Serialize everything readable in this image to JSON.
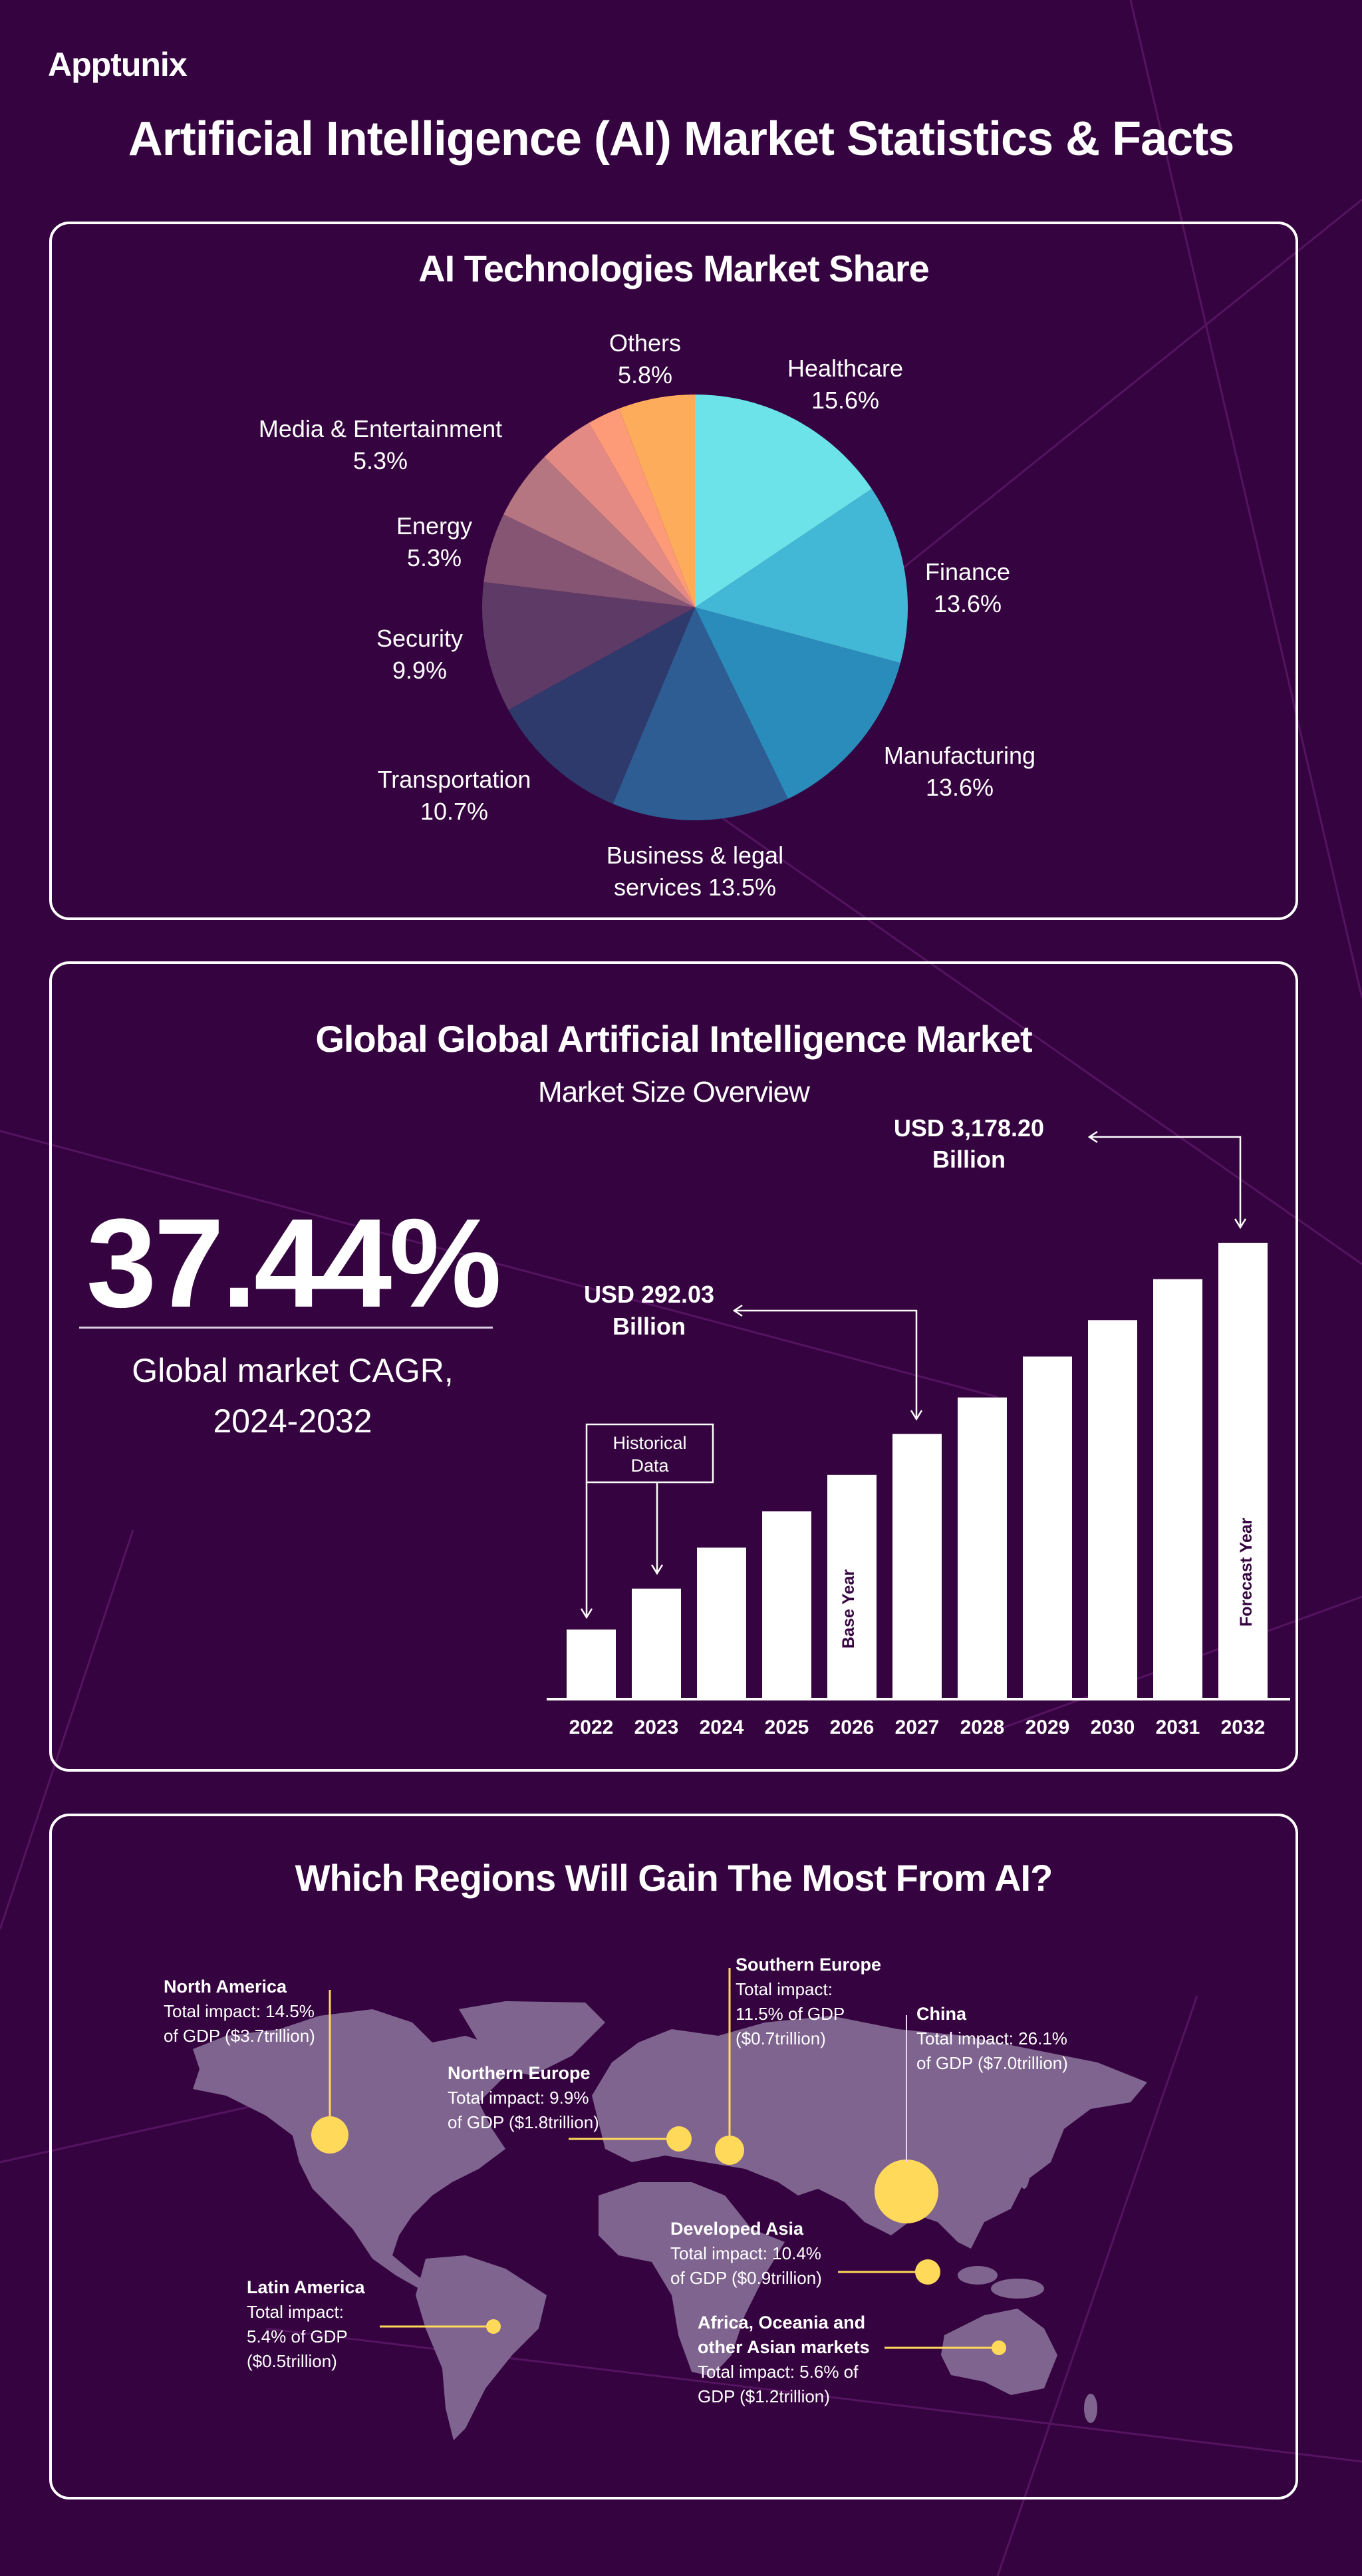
{
  "brand": {
    "logo": "Apptunix"
  },
  "title": "Artificial Intelligence (AI) Market Statistics & Facts",
  "colors": {
    "background": "#35033f",
    "panel_border": "#ffffff",
    "marker": "#ffd95a",
    "map_land": "#7f6490"
  },
  "chart_data": [
    {
      "type": "pie",
      "title": "AI Technologies Market Share",
      "slices": [
        {
          "name": "Healthcare",
          "label": "15.6%",
          "value": 15.6,
          "color": "#6be3e8"
        },
        {
          "name": "Finance",
          "label": "13.6%",
          "value": 13.6,
          "color": "#43b8d6"
        },
        {
          "name": "Manufacturing",
          "label": "13.6%",
          "value": 13.6,
          "color": "#2a8cbb"
        },
        {
          "name": "Business & legal",
          "name2": "services 13.5%",
          "label": "13.5%",
          "value": 13.5,
          "color": "#2e5d94"
        },
        {
          "name": "Transportation",
          "label": "10.7%",
          "value": 10.7,
          "color": "#2f3a6c"
        },
        {
          "name": "Security",
          "label": "9.9%",
          "value": 9.9,
          "color": "#5e3a67"
        },
        {
          "name": "Energy",
          "label": "5.3%",
          "value": 5.3,
          "color": "#865573"
        },
        {
          "name": "Media & Entertainment",
          "label": "5.3%",
          "value": 5.3,
          "color": "#b57581"
        },
        {
          "name": "",
          "label": "",
          "value": 4.2,
          "color": "#e38a84"
        },
        {
          "name": "",
          "label": "",
          "value": 2.5,
          "color": "#fd9a78"
        },
        {
          "name": "Others",
          "label": "5.8%",
          "value": 5.8,
          "color": "#fdac5c"
        }
      ]
    },
    {
      "type": "bar",
      "title": "Global Global Artificial Intelligence Market",
      "subtitle": "Market Size Overview",
      "categories": [
        "2022",
        "2023",
        "2024",
        "2025",
        "2026",
        "2027",
        "2028",
        "2029",
        "2030",
        "2031",
        "2032"
      ],
      "values_relative_percent": [
        15,
        24,
        33,
        41,
        49,
        58,
        66,
        75,
        83,
        92,
        100
      ],
      "bar_color": "#ffffff",
      "annotations": {
        "forecast_value": "USD 3,178.20",
        "forecast_unit": "Billion",
        "base_value": "USD 292.03",
        "base_unit": "Billion",
        "historical": "Historical",
        "historical2": "Data",
        "base_year": "Base Year",
        "forecast_year": "Forecast Year"
      }
    }
  ],
  "cagr": {
    "value": "37.44%",
    "label1": "Global market CAGR,",
    "label2": "2024-2032"
  },
  "regions": {
    "title": "Which Regions Will Gain The Most From AI?",
    "items": [
      {
        "name": "North America",
        "lines": [
          "Total impact: 14.5%",
          "of GDP ($3.7trillion)"
        ],
        "impact_pct": 14.5
      },
      {
        "name": "Northern Europe",
        "lines": [
          "Total impact: 9.9%",
          "of GDP ($1.8trillion)"
        ],
        "impact_pct": 9.9
      },
      {
        "name": "Southern Europe",
        "lines": [
          "Total impact:",
          "11.5% of GDP",
          "($0.7trillion)"
        ],
        "impact_pct": 11.5
      },
      {
        "name": "China",
        "lines": [
          "Total impact: 26.1%",
          "of GDP ($7.0trillion)"
        ],
        "impact_pct": 26.1
      },
      {
        "name": "Developed Asia",
        "lines": [
          "Total impact: 10.4%",
          "of GDP ($0.9trillion)"
        ],
        "impact_pct": 10.4
      },
      {
        "name": "Latin America",
        "lines": [
          "Total impact:",
          "5.4% of GDP",
          "($0.5trillion)"
        ],
        "impact_pct": 5.4
      },
      {
        "name": "Africa, Oceania and",
        "name2": "other Asian markets",
        "lines": [
          "Total impact: 5.6% of",
          "GDP ($1.2trillion)"
        ],
        "impact_pct": 5.6
      }
    ]
  }
}
